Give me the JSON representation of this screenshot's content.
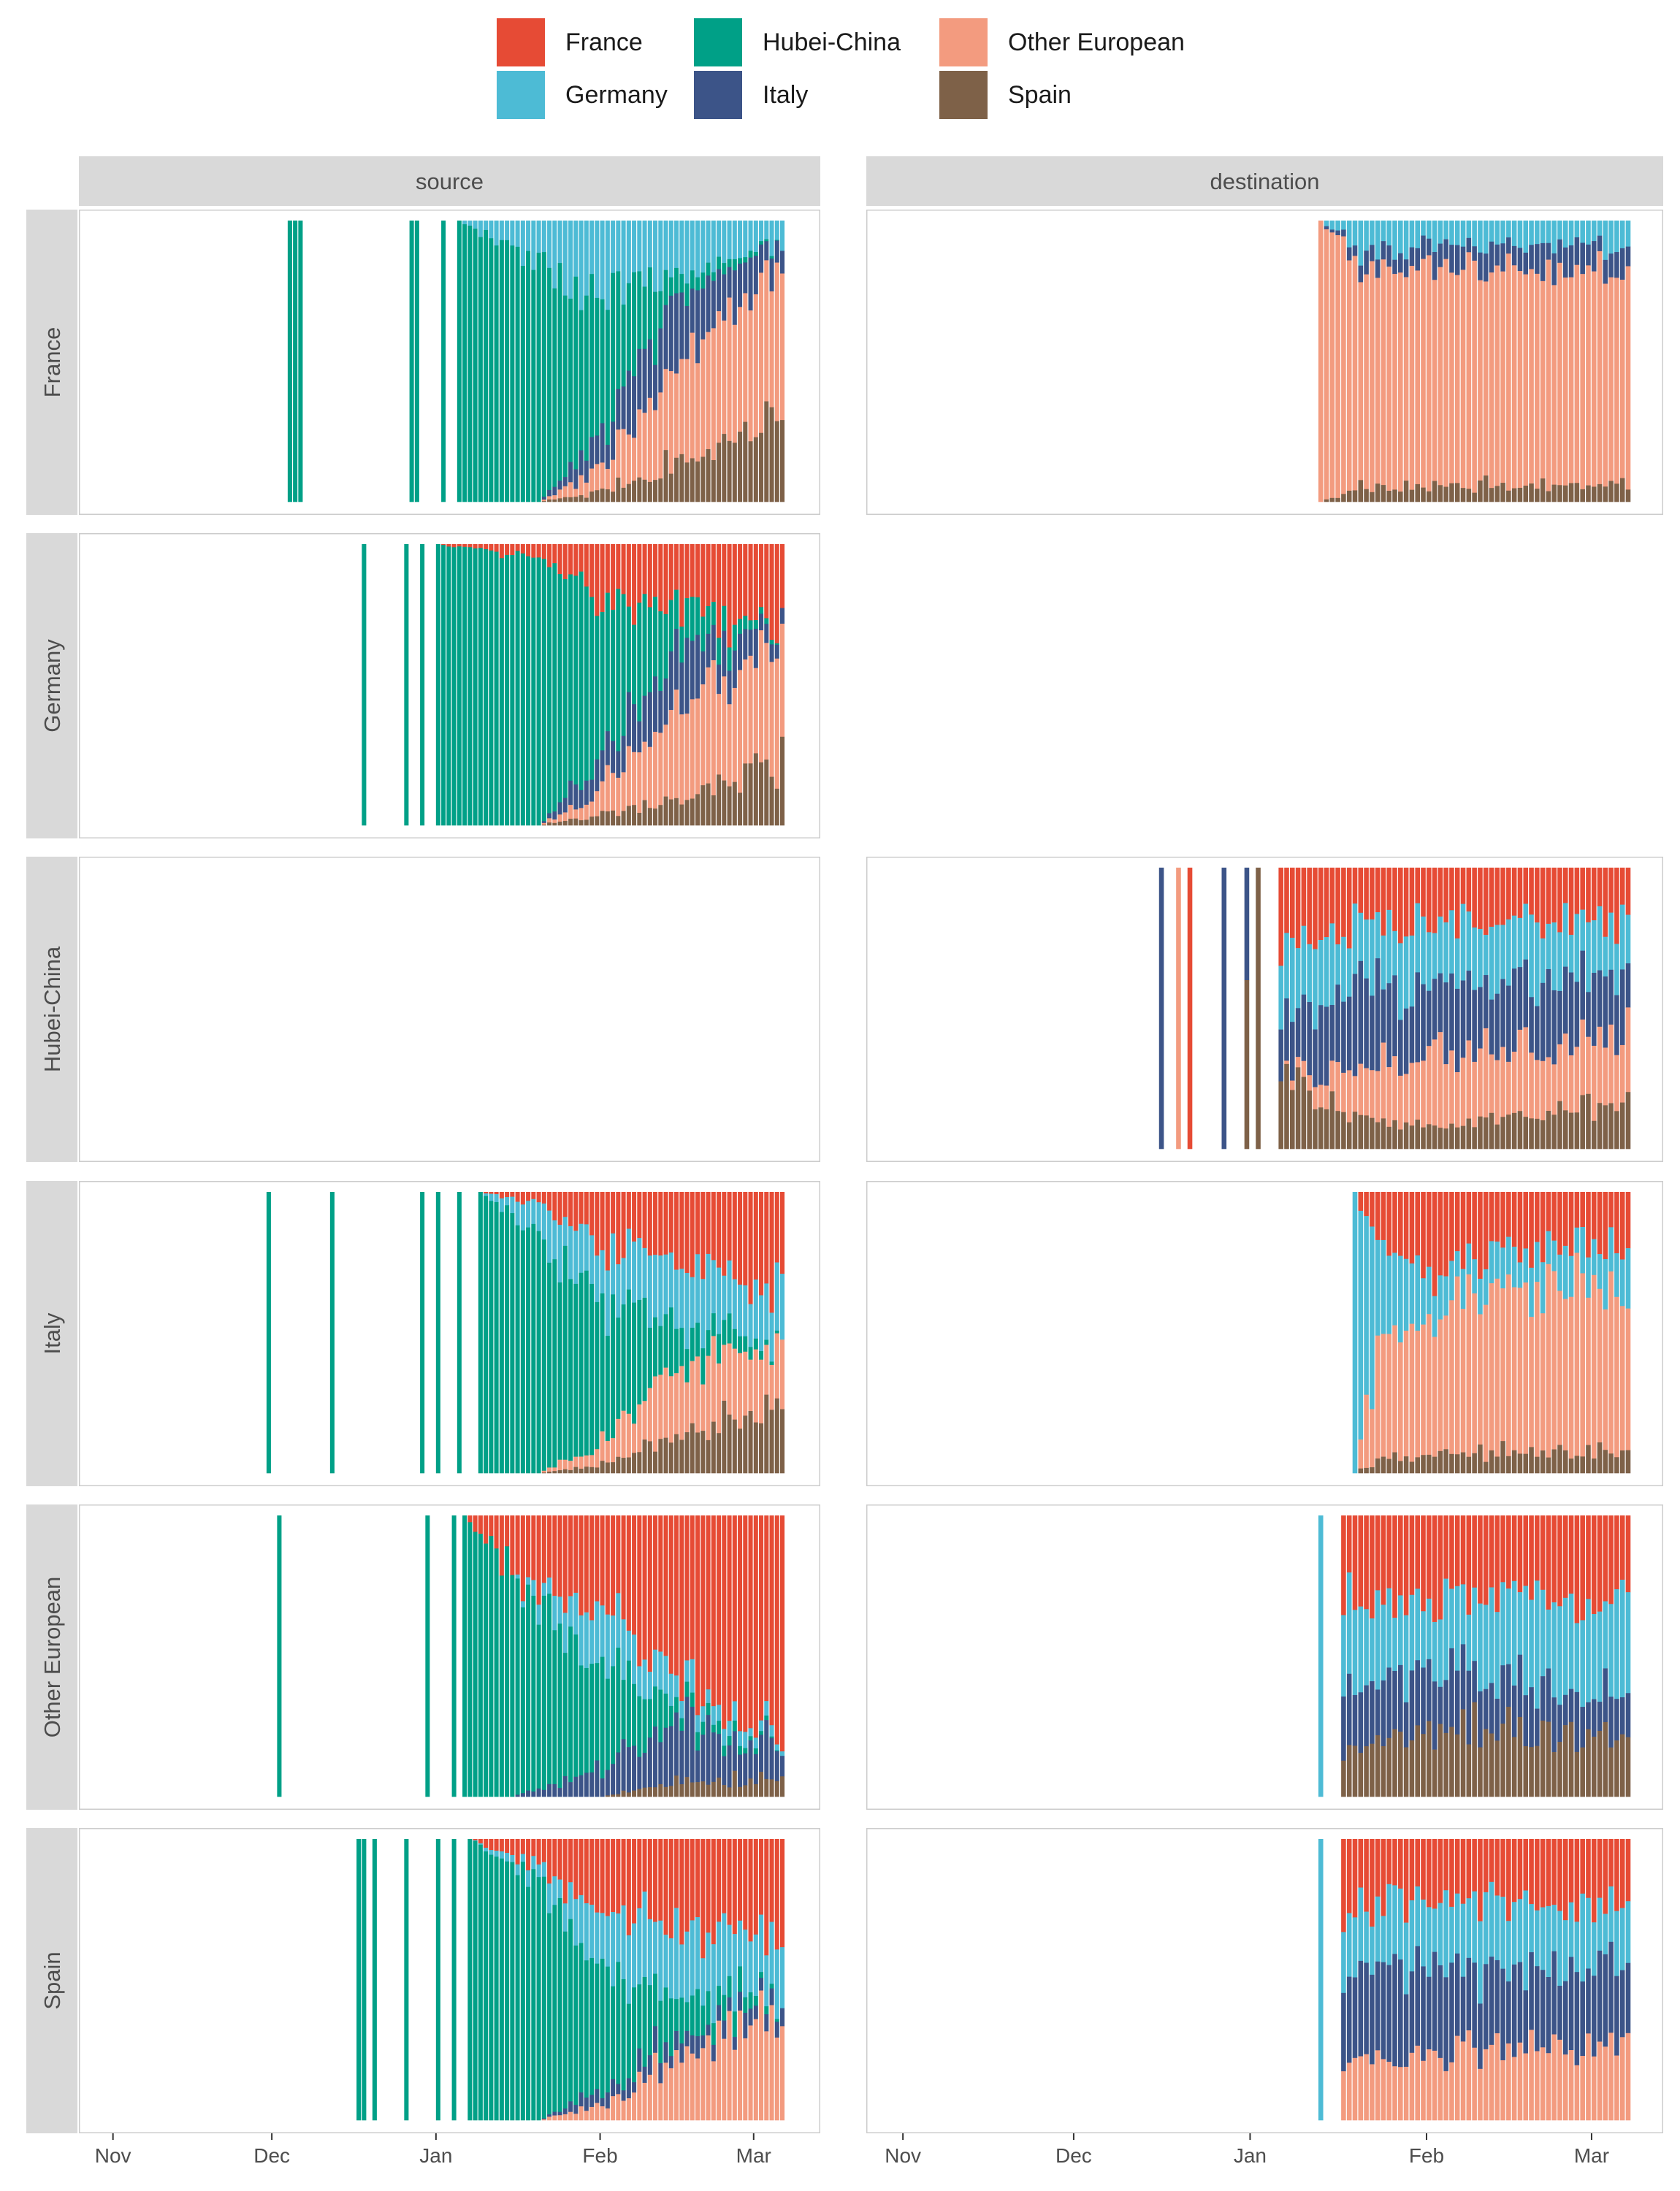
{
  "legend": [
    {
      "name": "France",
      "color": "#e64b35"
    },
    {
      "name": "Germany",
      "color": "#4dbbd5"
    },
    {
      "name": "Hubei-China",
      "color": "#00a087"
    },
    {
      "name": "Italy",
      "color": "#3c5488"
    },
    {
      "name": "Other European",
      "color": "#f39b7f"
    },
    {
      "name": "Spain",
      "color": "#7e6148"
    }
  ],
  "chart_data": {
    "type": "bar",
    "stacking": "proportional (fill = 1)",
    "facets": {
      "columns": [
        "source",
        "destination"
      ],
      "rows": [
        "France",
        "Germany",
        "Hubei-China",
        "Italy",
        "Other European",
        "Spain"
      ]
    },
    "x_axis": {
      "ticks": [
        "Nov",
        "Dec",
        "Jan",
        "Feb",
        "Mar"
      ],
      "tick_dates": [
        "2019-11-01",
        "2019-12-01",
        "2020-01-01",
        "2020-02-01",
        "2020-03-01"
      ]
    },
    "y_axis": {
      "range": [
        0,
        1
      ],
      "tick_labels": "none"
    },
    "grid": false,
    "legend_position": "top",
    "panels": [
      {
        "row": "France",
        "column": "source",
        "sparse_bars": [
          {
            "start": "2019-12-04",
            "end": "2019-12-06",
            "composition": {
              "Hubei-China": 1
            }
          },
          {
            "start": "2019-12-27",
            "end": "2019-12-28",
            "composition": {
              "Hubei-China": 1
            }
          },
          {
            "start": "2020-01-02",
            "end": "2020-01-02",
            "composition": {
              "Hubei-China": 1
            }
          }
        ],
        "dense_start": "2020-01-05",
        "dense_end": "2020-03-06",
        "keyframes": [
          {
            "date": "2020-01-05",
            "shares": {
              "Hubei-China": 1.0
            }
          },
          {
            "date": "2020-01-20",
            "shares": {
              "Germany": 0.15,
              "Hubei-China": 0.85
            }
          },
          {
            "date": "2020-01-31",
            "shares": {
              "Germany": 0.25,
              "Hubei-China": 0.55,
              "Italy": 0.1,
              "Other European": 0.07,
              "Spain": 0.03
            }
          },
          {
            "date": "2020-02-15",
            "shares": {
              "Germany": 0.2,
              "Hubei-China": 0.07,
              "Italy": 0.25,
              "Other European": 0.35,
              "Spain": 0.13
            }
          },
          {
            "date": "2020-03-06",
            "shares": {
              "Germany": 0.07,
              "Hubei-China": 0.0,
              "Italy": 0.08,
              "Other European": 0.52,
              "Spain": 0.3
            }
          }
        ]
      },
      {
        "row": "France",
        "column": "destination",
        "dense_start": "2020-01-13",
        "dense_end": "2020-03-07",
        "keyframes": [
          {
            "date": "2020-01-13",
            "shares": {
              "Other European": 1.0
            }
          },
          {
            "date": "2020-01-20",
            "shares": {
              "Germany": 0.1,
              "Italy": 0.05,
              "Other European": 0.8,
              "Spain": 0.05
            }
          },
          {
            "date": "2020-02-01",
            "shares": {
              "Germany": 0.1,
              "Italy": 0.08,
              "Other European": 0.77,
              "Spain": 0.05
            }
          },
          {
            "date": "2020-03-07",
            "shares": {
              "Germany": 0.08,
              "Italy": 0.09,
              "Other European": 0.77,
              "Spain": 0.06
            }
          }
        ]
      },
      {
        "row": "Germany",
        "column": "source",
        "sparse_bars": [
          {
            "start": "2019-12-18",
            "end": "2019-12-18",
            "composition": {
              "Hubei-China": 1
            }
          },
          {
            "start": "2019-12-26",
            "end": "2019-12-26",
            "composition": {
              "Hubei-China": 1
            }
          },
          {
            "start": "2019-12-29",
            "end": "2019-12-29",
            "composition": {
              "Hubei-China": 1
            }
          }
        ],
        "dense_start": "2020-01-01",
        "dense_end": "2020-03-06",
        "keyframes": [
          {
            "date": "2020-01-01",
            "shares": {
              "Hubei-China": 1.0
            }
          },
          {
            "date": "2020-01-20",
            "shares": {
              "France": 0.05,
              "Hubei-China": 0.95
            }
          },
          {
            "date": "2020-01-31",
            "shares": {
              "France": 0.2,
              "Hubei-China": 0.6,
              "Italy": 0.1,
              "Other European": 0.07,
              "Spain": 0.03
            }
          },
          {
            "date": "2020-02-15",
            "shares": {
              "France": 0.22,
              "Hubei-China": 0.15,
              "Italy": 0.2,
              "Other European": 0.33,
              "Spain": 0.1
            }
          },
          {
            "date": "2020-03-06",
            "shares": {
              "France": 0.32,
              "Hubei-China": 0.0,
              "Italy": 0.06,
              "Other European": 0.39,
              "Spain": 0.23
            }
          }
        ]
      },
      {
        "row": "Hubei-China",
        "column": "source",
        "bars": "none"
      },
      {
        "row": "Hubei-China",
        "column": "destination",
        "sparse_bars": [
          {
            "start": "2019-12-16",
            "end": "2019-12-16",
            "composition": {
              "Italy": 1
            }
          },
          {
            "start": "2019-12-19",
            "end": "2019-12-19",
            "composition": {
              "Other European": 1
            }
          },
          {
            "start": "2019-12-21",
            "end": "2019-12-21",
            "composition": {
              "France": 1
            }
          },
          {
            "start": "2019-12-27",
            "end": "2019-12-27",
            "composition": {
              "Italy": 1
            }
          },
          {
            "start": "2019-12-31",
            "end": "2019-12-31",
            "composition": {
              "Italy": 0.4,
              "Spain": 0.6
            }
          },
          {
            "start": "2020-01-02",
            "end": "2020-01-02",
            "composition": {
              "Spain": 1
            }
          }
        ],
        "dense_start": "2020-01-06",
        "dense_end": "2020-03-07",
        "keyframes": [
          {
            "date": "2020-01-06",
            "shares": {
              "France": 0.25,
              "Germany": 0.25,
              "Italy": 0.2,
              "Spain": 0.3
            }
          },
          {
            "date": "2020-01-20",
            "shares": {
              "France": 0.2,
              "Germany": 0.2,
              "Italy": 0.3,
              "Other European": 0.2,
              "Spain": 0.1
            }
          },
          {
            "date": "2020-02-01",
            "shares": {
              "France": 0.2,
              "Germany": 0.22,
              "Italy": 0.25,
              "Other European": 0.25,
              "Spain": 0.08
            }
          },
          {
            "date": "2020-03-07",
            "shares": {
              "France": 0.18,
              "Germany": 0.2,
              "Italy": 0.22,
              "Other European": 0.24,
              "Spain": 0.16
            }
          }
        ]
      },
      {
        "row": "Italy",
        "column": "source",
        "sparse_bars": [
          {
            "start": "2019-11-30",
            "end": "2019-11-30",
            "composition": {
              "Hubei-China": 1
            }
          },
          {
            "start": "2019-12-12",
            "end": "2019-12-12",
            "composition": {
              "Hubei-China": 1
            }
          },
          {
            "start": "2019-12-29",
            "end": "2019-12-29",
            "composition": {
              "Hubei-China": 1
            }
          },
          {
            "start": "2020-01-01",
            "end": "2020-01-01",
            "composition": {
              "Hubei-China": 1
            }
          },
          {
            "start": "2020-01-05",
            "end": "2020-01-05",
            "composition": {
              "Hubei-China": 1
            }
          }
        ],
        "dense_start": "2020-01-09",
        "dense_end": "2020-03-06",
        "keyframes": [
          {
            "date": "2020-01-09",
            "shares": {
              "Hubei-China": 1.0
            }
          },
          {
            "date": "2020-01-20",
            "shares": {
              "France": 0.05,
              "Germany": 0.1,
              "Hubei-China": 0.85
            }
          },
          {
            "date": "2020-02-01",
            "shares": {
              "France": 0.2,
              "Germany": 0.2,
              "Hubei-China": 0.5,
              "Other European": 0.07,
              "Spain": 0.03
            }
          },
          {
            "date": "2020-02-15",
            "shares": {
              "France": 0.25,
              "Germany": 0.22,
              "Hubei-China": 0.15,
              "Other European": 0.25,
              "Spain": 0.13
            }
          },
          {
            "date": "2020-03-06",
            "shares": {
              "France": 0.35,
              "Germany": 0.2,
              "Hubei-China": 0.0,
              "Other European": 0.2,
              "Spain": 0.25
            }
          }
        ]
      },
      {
        "row": "Italy",
        "column": "destination",
        "dense_start": "2020-01-19",
        "dense_end": "2020-03-07",
        "keyframes": [
          {
            "date": "2020-01-19",
            "shares": {
              "Germany": 1.0
            }
          },
          {
            "date": "2020-01-24",
            "shares": {
              "France": 0.2,
              "Germany": 0.3,
              "Other European": 0.45,
              "Spain": 0.05
            }
          },
          {
            "date": "2020-02-05",
            "shares": {
              "France": 0.25,
              "Germany": 0.12,
              "Other European": 0.57,
              "Spain": 0.06
            }
          },
          {
            "date": "2020-03-07",
            "shares": {
              "France": 0.15,
              "Germany": 0.14,
              "Other European": 0.63,
              "Spain": 0.08
            }
          }
        ]
      },
      {
        "row": "Other European",
        "column": "source",
        "sparse_bars": [
          {
            "start": "2019-12-02",
            "end": "2019-12-02",
            "composition": {
              "Hubei-China": 1
            }
          },
          {
            "start": "2019-12-30",
            "end": "2019-12-30",
            "composition": {
              "Hubei-China": 1
            }
          },
          {
            "start": "2020-01-04",
            "end": "2020-01-04",
            "composition": {
              "Hubei-China": 1
            }
          }
        ],
        "dense_start": "2020-01-06",
        "dense_end": "2020-03-06",
        "keyframes": [
          {
            "date": "2020-01-06",
            "shares": {
              "Hubei-China": 1.0
            }
          },
          {
            "date": "2020-01-15",
            "shares": {
              "France": 0.2,
              "Hubei-China": 0.8
            }
          },
          {
            "date": "2020-02-01",
            "shares": {
              "France": 0.35,
              "Germany": 0.2,
              "Hubei-China": 0.35,
              "Italy": 0.1
            }
          },
          {
            "date": "2020-02-15",
            "shares": {
              "France": 0.6,
              "Germany": 0.08,
              "Hubei-China": 0.07,
              "Italy": 0.2,
              "Spain": 0.05
            }
          },
          {
            "date": "2020-03-06",
            "shares": {
              "France": 0.78,
              "Germany": 0.03,
              "Hubei-China": 0.0,
              "Italy": 0.12,
              "Spain": 0.07
            }
          }
        ]
      },
      {
        "row": "Other European",
        "column": "destination",
        "sparse_bars": [
          {
            "start": "2020-01-13",
            "end": "2020-01-13",
            "composition": {
              "Germany": 1
            }
          }
        ],
        "dense_start": "2020-01-17",
        "dense_end": "2020-03-07",
        "keyframes": [
          {
            "date": "2020-01-17",
            "shares": {
              "France": 0.3,
              "Germany": 0.35,
              "Italy": 0.2,
              "Spain": 0.15
            }
          },
          {
            "date": "2020-02-01",
            "shares": {
              "France": 0.3,
              "Germany": 0.25,
              "Italy": 0.2,
              "Spain": 0.25
            }
          },
          {
            "date": "2020-03-07",
            "shares": {
              "France": 0.3,
              "Germany": 0.35,
              "Italy": 0.15,
              "Spain": 0.2
            }
          }
        ]
      },
      {
        "row": "Spain",
        "column": "source",
        "sparse_bars": [
          {
            "start": "2019-12-17",
            "end": "2019-12-18",
            "composition": {
              "Hubei-China": 1
            }
          },
          {
            "start": "2019-12-20",
            "end": "2019-12-20",
            "composition": {
              "Hubei-China": 1
            }
          },
          {
            "start": "2019-12-26",
            "end": "2019-12-26",
            "composition": {
              "Hubei-China": 1
            }
          },
          {
            "start": "2020-01-01",
            "end": "2020-01-01",
            "composition": {
              "Hubei-China": 1
            }
          },
          {
            "start": "2020-01-04",
            "end": "2020-01-04",
            "composition": {
              "Hubei-China": 1
            }
          }
        ],
        "dense_start": "2020-01-07",
        "dense_end": "2020-03-06",
        "keyframes": [
          {
            "date": "2020-01-07",
            "shares": {
              "Hubei-China": 1.0
            }
          },
          {
            "date": "2020-01-20",
            "shares": {
              "France": 0.1,
              "Germany": 0.05,
              "Hubei-China": 0.85
            }
          },
          {
            "date": "2020-02-01",
            "shares": {
              "France": 0.25,
              "Germany": 0.2,
              "Hubei-China": 0.45,
              "Italy": 0.05,
              "Other European": 0.05
            }
          },
          {
            "date": "2020-02-15",
            "shares": {
              "France": 0.3,
              "Germany": 0.25,
              "Hubei-China": 0.15,
              "Italy": 0.07,
              "Other European": 0.23
            }
          },
          {
            "date": "2020-03-06",
            "shares": {
              "France": 0.4,
              "Germany": 0.17,
              "Hubei-China": 0.0,
              "Italy": 0.05,
              "Other European": 0.38
            }
          }
        ]
      },
      {
        "row": "Spain",
        "column": "destination",
        "sparse_bars": [
          {
            "start": "2020-01-13",
            "end": "2020-01-13",
            "composition": {
              "Germany": 1
            }
          }
        ],
        "dense_start": "2020-01-17",
        "dense_end": "2020-03-07",
        "keyframes": [
          {
            "date": "2020-01-17",
            "shares": {
              "France": 0.3,
              "Germany": 0.2,
              "Italy": 0.3,
              "Other European": 0.2
            }
          },
          {
            "date": "2020-01-30",
            "shares": {
              "France": 0.2,
              "Germany": 0.25,
              "Italy": 0.3,
              "Other European": 0.25
            }
          },
          {
            "date": "2020-03-07",
            "shares": {
              "France": 0.24,
              "Germany": 0.21,
              "Italy": 0.27,
              "Other European": 0.28
            }
          }
        ]
      }
    ]
  }
}
